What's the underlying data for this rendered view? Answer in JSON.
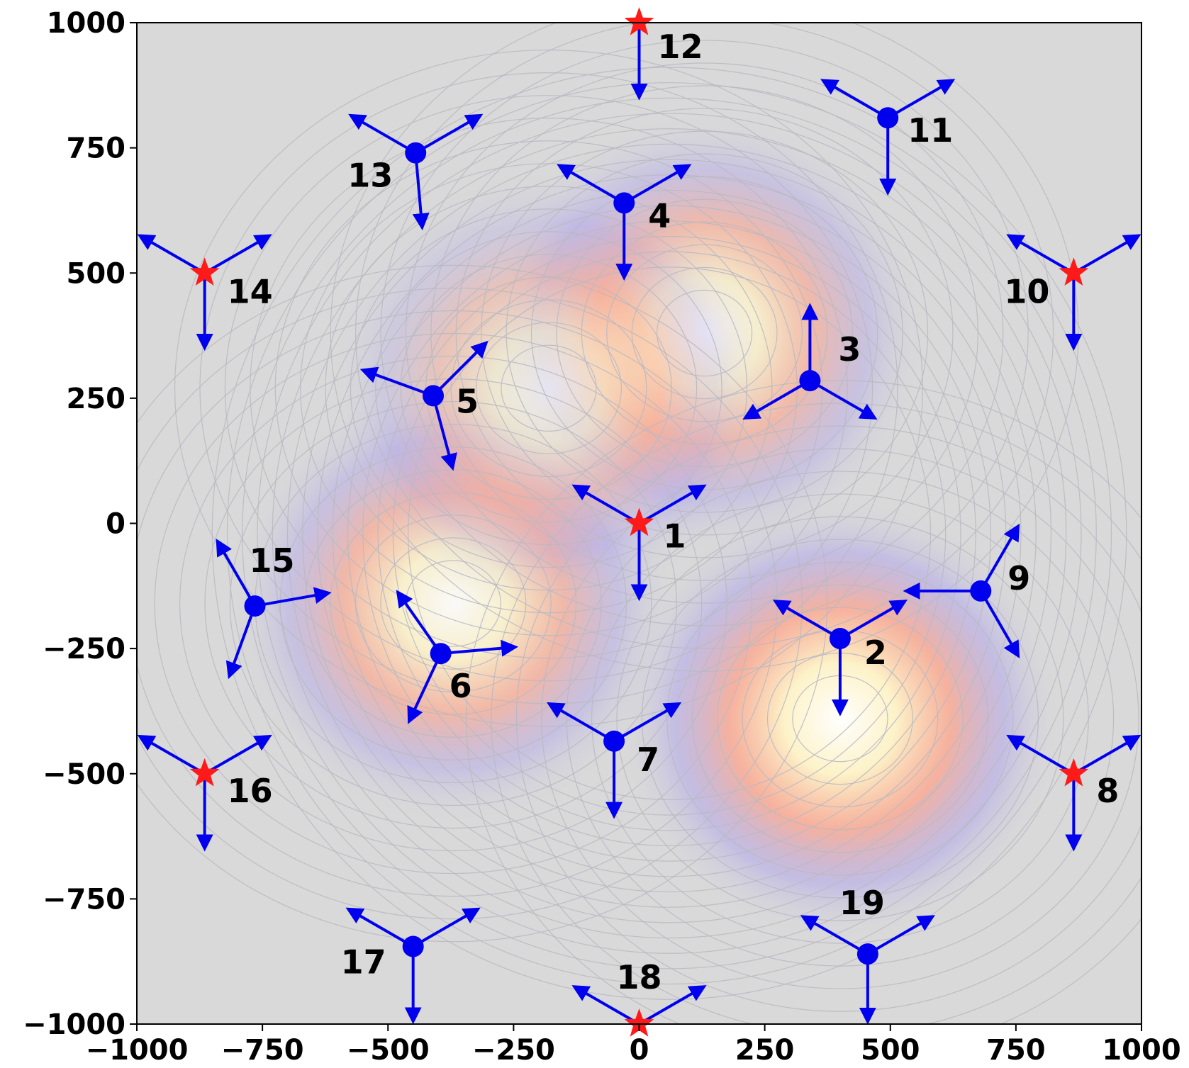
{
  "chart_data": {
    "type": "scatter",
    "title": "",
    "xlabel": "",
    "ylabel": "",
    "xlim": [
      -1000,
      1000
    ],
    "ylim": [
      -1000,
      1000
    ],
    "x_ticks": [
      -1000,
      -750,
      -500,
      -250,
      0,
      250,
      500,
      750,
      1000
    ],
    "y_ticks": [
      -1000,
      -750,
      -500,
      -250,
      0,
      250,
      500,
      750,
      1000
    ],
    "x_tick_labels": [
      "−1000",
      "−750",
      "−500",
      "−250",
      "0",
      "250",
      "500",
      "750",
      "1000"
    ],
    "y_tick_labels": [
      "−1000",
      "−750",
      "−500",
      "−250",
      "0",
      "250",
      "500",
      "750",
      "1000"
    ],
    "grid": false,
    "background": "density contour map",
    "colors": {
      "node_dot": "#0000ee",
      "node_star": "#ff1a1a",
      "arrow": "#0000ee",
      "field_background": "#d9d9d9"
    },
    "hotspots": [
      {
        "x": 400,
        "y": -390,
        "strength": 1.0,
        "spread": 170
      },
      {
        "x": -370,
        "y": -160,
        "strength": 0.85,
        "spread": 170
      },
      {
        "x": 130,
        "y": 380,
        "strength": 0.8,
        "spread": 170
      },
      {
        "x": -180,
        "y": 270,
        "strength": 0.55,
        "spread": 170
      }
    ],
    "nodes": [
      {
        "id": 1,
        "label": "1",
        "x": 0,
        "y": 0,
        "marker": "star",
        "arrow_angles": [
          150,
          30,
          -90
        ]
      },
      {
        "id": 2,
        "label": "2",
        "x": 400,
        "y": -230,
        "marker": "dot",
        "arrow_angles": [
          150,
          30,
          -90
        ]
      },
      {
        "id": 3,
        "label": "3",
        "x": 340,
        "y": 285,
        "marker": "dot",
        "arrow_angles": [
          90,
          210,
          -30
        ]
      },
      {
        "id": 4,
        "label": "4",
        "x": -30,
        "y": 640,
        "marker": "dot",
        "arrow_angles": [
          150,
          30,
          -90
        ]
      },
      {
        "id": 5,
        "label": "5",
        "x": -410,
        "y": 255,
        "marker": "dot",
        "arrow_angles": [
          160,
          45,
          -75
        ]
      },
      {
        "id": 6,
        "label": "6",
        "x": -395,
        "y": -260,
        "marker": "dot",
        "arrow_angles": [
          125,
          5,
          -115
        ]
      },
      {
        "id": 7,
        "label": "7",
        "x": -50,
        "y": -435,
        "marker": "dot",
        "arrow_angles": [
          150,
          30,
          -90
        ]
      },
      {
        "id": 8,
        "label": "8",
        "x": 865,
        "y": -500,
        "marker": "star",
        "arrow_angles": [
          150,
          30,
          -90
        ]
      },
      {
        "id": 9,
        "label": "9",
        "x": 680,
        "y": -135,
        "marker": "dot",
        "arrow_angles": [
          180,
          60,
          -60
        ]
      },
      {
        "id": 10,
        "label": "10",
        "x": 865,
        "y": 500,
        "marker": "star",
        "arrow_angles": [
          150,
          30,
          -90
        ]
      },
      {
        "id": 11,
        "label": "11",
        "x": 495,
        "y": 810,
        "marker": "dot",
        "arrow_angles": [
          150,
          30,
          -90
        ]
      },
      {
        "id": 12,
        "label": "12",
        "x": 0,
        "y": 1000,
        "marker": "star",
        "arrow_angles": [
          -90
        ]
      },
      {
        "id": 13,
        "label": "13",
        "x": -445,
        "y": 740,
        "marker": "dot",
        "arrow_angles": [
          150,
          30,
          -85
        ]
      },
      {
        "id": 14,
        "label": "14",
        "x": -865,
        "y": 500,
        "marker": "star",
        "arrow_angles": [
          150,
          30,
          -90
        ]
      },
      {
        "id": 15,
        "label": "15",
        "x": -765,
        "y": -165,
        "marker": "dot",
        "arrow_angles": [
          120,
          10,
          -110
        ]
      },
      {
        "id": 16,
        "label": "16",
        "x": -865,
        "y": -500,
        "marker": "star",
        "arrow_angles": [
          150,
          30,
          -90
        ]
      },
      {
        "id": 17,
        "label": "17",
        "x": -450,
        "y": -845,
        "marker": "dot",
        "arrow_angles": [
          150,
          30,
          -90
        ]
      },
      {
        "id": 18,
        "label": "18",
        "x": 0,
        "y": -1000,
        "marker": "star",
        "arrow_angles": [
          150,
          30
        ]
      },
      {
        "id": 19,
        "label": "19",
        "x": 455,
        "y": -860,
        "marker": "dot",
        "arrow_angles": [
          150,
          30,
          -90
        ]
      }
    ]
  }
}
